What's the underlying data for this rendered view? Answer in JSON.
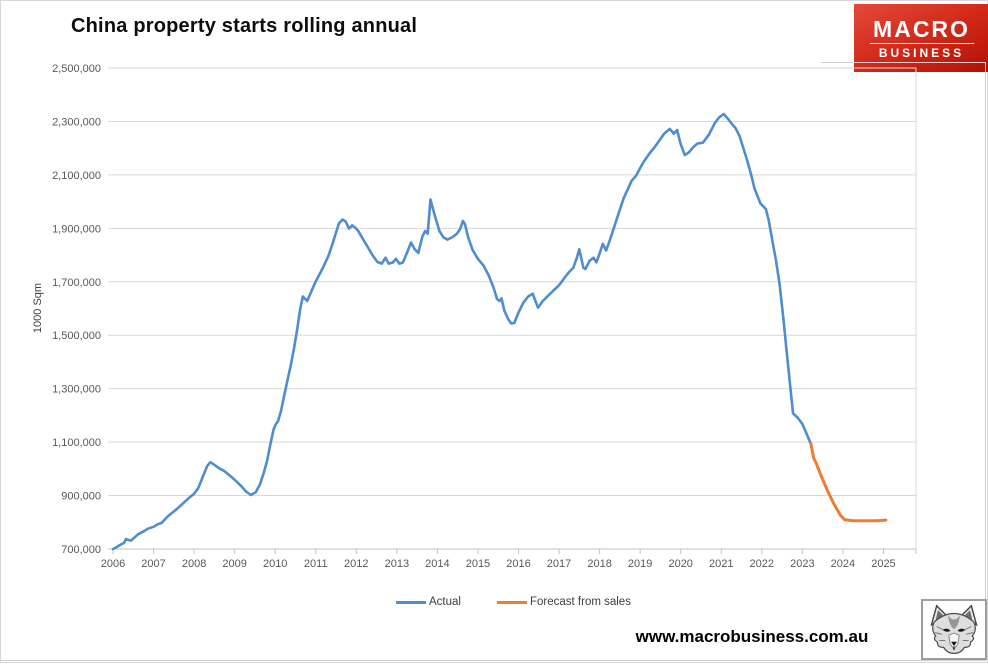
{
  "header": {
    "title": "China property starts rolling annual"
  },
  "logo": {
    "line1": "MACRO",
    "line2": "BUSINESS",
    "background": "#c81a0d",
    "text_color": "#ffffff"
  },
  "footer": {
    "url": "www.macrobusiness.com.au"
  },
  "colors": {
    "actual": "#4f8dcc",
    "forecast": "#ED7D31",
    "gridline": "#d9d9d9",
    "axis": "#c3c3c3",
    "tick_label": "#595959"
  },
  "chart_data": {
    "type": "line",
    "title": "China property starts rolling annual",
    "xlabel": "",
    "ylabel": "1000 Sqm",
    "ylim": [
      700000,
      2500000
    ],
    "xlim": [
      2006,
      2025.8
    ],
    "grid": "horizontal",
    "legend_position": "bottom",
    "y_ticks": [
      700000,
      900000,
      1100000,
      1300000,
      1500000,
      1700000,
      1900000,
      2100000,
      2300000,
      2500000
    ],
    "x_ticks": [
      2006,
      2007,
      2008,
      2009,
      2010,
      2011,
      2012,
      2013,
      2014,
      2015,
      2016,
      2017,
      2018,
      2019,
      2020,
      2021,
      2022,
      2023,
      2024,
      2025
    ],
    "series": [
      {
        "name": "Actual",
        "color": "#4f8dcc",
        "points": [
          [
            2006.0,
            700000
          ],
          [
            2006.08,
            706000
          ],
          [
            2006.15,
            713000
          ],
          [
            2006.27,
            723000
          ],
          [
            2006.32,
            737000
          ],
          [
            2006.44,
            731000
          ],
          [
            2006.62,
            755000
          ],
          [
            2006.78,
            768000
          ],
          [
            2006.86,
            776000
          ],
          [
            2007.0,
            783000
          ],
          [
            2007.11,
            793000
          ],
          [
            2007.19,
            797000
          ],
          [
            2007.36,
            823000
          ],
          [
            2007.6,
            853000
          ],
          [
            2007.85,
            888000
          ],
          [
            2008.0,
            907000
          ],
          [
            2008.1,
            928000
          ],
          [
            2008.22,
            972000
          ],
          [
            2008.32,
            1010000
          ],
          [
            2008.4,
            1025000
          ],
          [
            2008.5,
            1015000
          ],
          [
            2008.62,
            1002000
          ],
          [
            2008.75,
            991000
          ],
          [
            2008.95,
            966000
          ],
          [
            2009.05,
            952000
          ],
          [
            2009.16,
            936000
          ],
          [
            2009.28,
            915000
          ],
          [
            2009.4,
            902000
          ],
          [
            2009.52,
            912000
          ],
          [
            2009.62,
            940000
          ],
          [
            2009.72,
            985000
          ],
          [
            2009.8,
            1030000
          ],
          [
            2009.88,
            1090000
          ],
          [
            2009.96,
            1148000
          ],
          [
            2010.02,
            1168000
          ],
          [
            2010.07,
            1178000
          ],
          [
            2010.14,
            1215000
          ],
          [
            2010.22,
            1272000
          ],
          [
            2010.3,
            1330000
          ],
          [
            2010.38,
            1385000
          ],
          [
            2010.46,
            1448000
          ],
          [
            2010.54,
            1520000
          ],
          [
            2010.62,
            1600000
          ],
          [
            2010.68,
            1645000
          ],
          [
            2010.74,
            1636000
          ],
          [
            2010.79,
            1628000
          ],
          [
            2010.88,
            1660000
          ],
          [
            2011.0,
            1702000
          ],
          [
            2011.1,
            1730000
          ],
          [
            2011.2,
            1760000
          ],
          [
            2011.32,
            1800000
          ],
          [
            2011.42,
            1845000
          ],
          [
            2011.5,
            1884000
          ],
          [
            2011.57,
            1918000
          ],
          [
            2011.66,
            1933000
          ],
          [
            2011.74,
            1925000
          ],
          [
            2011.82,
            1899000
          ],
          [
            2011.9,
            1911000
          ],
          [
            2011.97,
            1903000
          ],
          [
            2012.05,
            1890000
          ],
          [
            2012.16,
            1861000
          ],
          [
            2012.28,
            1830000
          ],
          [
            2012.4,
            1800000
          ],
          [
            2012.52,
            1774000
          ],
          [
            2012.63,
            1768000
          ],
          [
            2012.72,
            1790000
          ],
          [
            2012.8,
            1768000
          ],
          [
            2012.9,
            1772000
          ],
          [
            2012.98,
            1786000
          ],
          [
            2013.06,
            1768000
          ],
          [
            2013.15,
            1772000
          ],
          [
            2013.27,
            1816000
          ],
          [
            2013.35,
            1847000
          ],
          [
            2013.44,
            1822000
          ],
          [
            2013.53,
            1808000
          ],
          [
            2013.63,
            1870000
          ],
          [
            2013.7,
            1890000
          ],
          [
            2013.76,
            1880000
          ],
          [
            2013.83,
            2008000
          ],
          [
            2013.9,
            1968000
          ],
          [
            2013.97,
            1930000
          ],
          [
            2014.05,
            1890000
          ],
          [
            2014.15,
            1866000
          ],
          [
            2014.25,
            1858000
          ],
          [
            2014.38,
            1868000
          ],
          [
            2014.48,
            1880000
          ],
          [
            2014.56,
            1897000
          ],
          [
            2014.63,
            1928000
          ],
          [
            2014.68,
            1915000
          ],
          [
            2014.76,
            1866000
          ],
          [
            2014.87,
            1818000
          ],
          [
            2015.0,
            1786000
          ],
          [
            2015.14,
            1760000
          ],
          [
            2015.27,
            1722000
          ],
          [
            2015.38,
            1680000
          ],
          [
            2015.47,
            1636000
          ],
          [
            2015.53,
            1628000
          ],
          [
            2015.58,
            1638000
          ],
          [
            2015.65,
            1592000
          ],
          [
            2015.74,
            1562000
          ],
          [
            2015.82,
            1544000
          ],
          [
            2015.9,
            1546000
          ],
          [
            2016.0,
            1585000
          ],
          [
            2016.12,
            1622000
          ],
          [
            2016.24,
            1645000
          ],
          [
            2016.35,
            1655000
          ],
          [
            2016.48,
            1603000
          ],
          [
            2016.6,
            1628000
          ],
          [
            2016.73,
            1648000
          ],
          [
            2016.86,
            1667000
          ],
          [
            2017.0,
            1687000
          ],
          [
            2017.12,
            1712000
          ],
          [
            2017.24,
            1735000
          ],
          [
            2017.35,
            1752000
          ],
          [
            2017.44,
            1790000
          ],
          [
            2017.5,
            1822000
          ],
          [
            2017.6,
            1752000
          ],
          [
            2017.65,
            1748000
          ],
          [
            2017.75,
            1778000
          ],
          [
            2017.85,
            1790000
          ],
          [
            2017.92,
            1773000
          ],
          [
            2018.0,
            1806000
          ],
          [
            2018.08,
            1842000
          ],
          [
            2018.16,
            1817000
          ],
          [
            2018.25,
            1854000
          ],
          [
            2018.37,
            1910000
          ],
          [
            2018.49,
            1966000
          ],
          [
            2018.6,
            2015000
          ],
          [
            2018.7,
            2048000
          ],
          [
            2018.79,
            2078000
          ],
          [
            2018.9,
            2097000
          ],
          [
            2019.03,
            2134000
          ],
          [
            2019.11,
            2154000
          ],
          [
            2019.23,
            2180000
          ],
          [
            2019.35,
            2202000
          ],
          [
            2019.47,
            2228000
          ],
          [
            2019.59,
            2254000
          ],
          [
            2019.73,
            2272000
          ],
          [
            2019.83,
            2254000
          ],
          [
            2019.91,
            2268000
          ],
          [
            2020.0,
            2215000
          ],
          [
            2020.1,
            2174000
          ],
          [
            2020.2,
            2184000
          ],
          [
            2020.3,
            2202000
          ],
          [
            2020.41,
            2217000
          ],
          [
            2020.55,
            2221000
          ],
          [
            2020.7,
            2252000
          ],
          [
            2020.83,
            2291000
          ],
          [
            2020.94,
            2314000
          ],
          [
            2021.06,
            2328000
          ],
          [
            2021.16,
            2311000
          ],
          [
            2021.26,
            2291000
          ],
          [
            2021.35,
            2276000
          ],
          [
            2021.45,
            2246000
          ],
          [
            2021.54,
            2203000
          ],
          [
            2021.64,
            2154000
          ],
          [
            2021.73,
            2104000
          ],
          [
            2021.82,
            2049000
          ],
          [
            2021.92,
            2010000
          ],
          [
            2021.97,
            1992000
          ],
          [
            2022.04,
            1982000
          ],
          [
            2022.1,
            1972000
          ],
          [
            2022.17,
            1930000
          ],
          [
            2022.26,
            1855000
          ],
          [
            2022.35,
            1780000
          ],
          [
            2022.44,
            1690000
          ],
          [
            2022.53,
            1565000
          ],
          [
            2022.62,
            1430000
          ],
          [
            2022.7,
            1310000
          ],
          [
            2022.77,
            1208000
          ],
          [
            2022.88,
            1192000
          ],
          [
            2023.0,
            1168000
          ],
          [
            2023.1,
            1133000
          ],
          [
            2023.21,
            1093000
          ]
        ]
      },
      {
        "name": "Forecast from sales",
        "color": "#ED7D31",
        "points": [
          [
            2023.21,
            1093000
          ],
          [
            2023.28,
            1040000
          ],
          [
            2023.34,
            1022000
          ],
          [
            2023.48,
            968000
          ],
          [
            2023.62,
            918000
          ],
          [
            2023.78,
            868000
          ],
          [
            2023.94,
            826000
          ],
          [
            2024.04,
            810000
          ],
          [
            2024.25,
            806000
          ],
          [
            2024.55,
            806000
          ],
          [
            2024.85,
            806000
          ],
          [
            2025.06,
            808000
          ]
        ]
      }
    ]
  }
}
